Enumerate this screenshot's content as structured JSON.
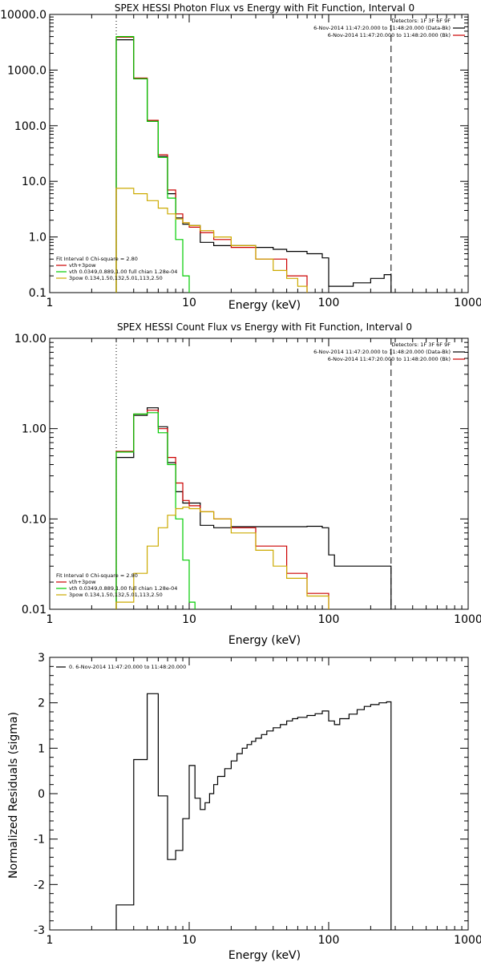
{
  "chart_data": [
    {
      "type": "line",
      "title": "SPEX HESSI Photon Flux vs Energy with Fit Function, Interval 0",
      "xlabel": "Energy (keV)",
      "ylabel": "",
      "xscale": "log",
      "yscale": "log",
      "xlim": [
        1,
        1000
      ],
      "ylim": [
        0.1,
        10000
      ],
      "x_ticks": [
        "1",
        "10",
        "100",
        "1000"
      ],
      "y_ticks": [
        "0.1",
        "1.0",
        "10.0",
        "100.0",
        "1000.0",
        "10000.0"
      ],
      "top_right_legend": [
        {
          "text": "Detectors: 1F 3F 6F 9F",
          "color": ""
        },
        {
          "text": "6-Nov-2014 11:47:20.000 to 11:48:20.000 (Data-Bk)",
          "color": "#000000"
        },
        {
          "text": "6-Nov-2014 11:47:20.000 to 11:48:20.000 (Bk)",
          "color": "#cc0000"
        }
      ],
      "fit_legend": [
        {
          "text": "Fit Interval 0   Chi-square = 2.80",
          "color": ""
        },
        {
          "text": "vth+3pow",
          "color": "#cc0000"
        },
        {
          "text": "vth 0.0349,0.889,1.00  full chian 1.28e-04",
          "color": "#00cc00"
        },
        {
          "text": "3pow 0.134,1.50,132,5.01,113,2.50",
          "color": "#ccaa00"
        }
      ],
      "vlines": [
        {
          "x": 3,
          "style": "dotted"
        },
        {
          "x": 280,
          "style": "dashed"
        }
      ],
      "series": [
        {
          "role": "data",
          "color": "#000000",
          "points": [
            [
              3,
              3500
            ],
            [
              4,
              700
            ],
            [
              5,
              120
            ],
            [
              6,
              28
            ],
            [
              7,
              6
            ],
            [
              8,
              2.2
            ],
            [
              9,
              1.7
            ],
            [
              10,
              1.6
            ],
            [
              12,
              0.8
            ],
            [
              15,
              0.7
            ],
            [
              20,
              0.7
            ],
            [
              30,
              0.65
            ],
            [
              40,
              0.6
            ],
            [
              50,
              0.55
            ],
            [
              70,
              0.5
            ],
            [
              90,
              0.42
            ],
            [
              100,
              0.13
            ],
            [
              120,
              0.13
            ],
            [
              150,
              0.15
            ],
            [
              200,
              0.18
            ],
            [
              250,
              0.21
            ],
            [
              280,
              0.22
            ]
          ]
        },
        {
          "role": "vth+3pow",
          "color": "#cc0000",
          "points": [
            [
              3,
              3900
            ],
            [
              4,
              720
            ],
            [
              5,
              125
            ],
            [
              6,
              30
            ],
            [
              7,
              7
            ],
            [
              8,
              2.6
            ],
            [
              9,
              1.8
            ],
            [
              10,
              1.5
            ],
            [
              12,
              1.2
            ],
            [
              15,
              0.9
            ],
            [
              20,
              0.65
            ],
            [
              30,
              0.4
            ],
            [
              50,
              0.2
            ],
            [
              70,
              0.1
            ]
          ]
        },
        {
          "role": "vth",
          "color": "#00cc00",
          "points": [
            [
              3,
              4000
            ],
            [
              4,
              700
            ],
            [
              5,
              120
            ],
            [
              6,
              27
            ],
            [
              7,
              5
            ],
            [
              8,
              0.9
            ],
            [
              9,
              0.2
            ],
            [
              10,
              0.05
            ]
          ]
        },
        {
          "role": "3pow",
          "color": "#ccaa00",
          "points": [
            [
              3,
              7.5
            ],
            [
              4,
              6
            ],
            [
              5,
              4.5
            ],
            [
              6,
              3.3
            ],
            [
              7,
              2.6
            ],
            [
              8,
              2.1
            ],
            [
              9,
              1.8
            ],
            [
              10,
              1.6
            ],
            [
              12,
              1.3
            ],
            [
              15,
              1
            ],
            [
              20,
              0.7
            ],
            [
              30,
              0.4
            ],
            [
              40,
              0.25
            ],
            [
              50,
              0.18
            ],
            [
              60,
              0.13
            ],
            [
              70,
              0.1
            ]
          ]
        }
      ]
    },
    {
      "type": "line",
      "title": "SPEX HESSI Count Flux vs Energy with Fit Function, Interval 0",
      "xlabel": "Energy (keV)",
      "ylabel": "",
      "xscale": "log",
      "yscale": "log",
      "xlim": [
        1,
        1000
      ],
      "ylim": [
        0.01,
        10
      ],
      "x_ticks": [
        "1",
        "10",
        "100",
        "1000"
      ],
      "y_ticks": [
        "0.01",
        "0.10",
        "1.00",
        "10.00"
      ],
      "top_right_legend": [
        {
          "text": "Detectors: 1F 3F 6F 9F",
          "color": ""
        },
        {
          "text": "6-Nov-2014 11:47:20.000 to 11:48:20.000 (Data-Bk)",
          "color": "#000000"
        },
        {
          "text": "6-Nov-2014 11:47:20.000 to 11:48:20.000 (Bk)",
          "color": "#cc0000"
        }
      ],
      "fit_legend": [
        {
          "text": "Fit Interval 0   Chi-square = 2.80",
          "color": ""
        },
        {
          "text": "vth+3pow",
          "color": "#cc0000"
        },
        {
          "text": "vth 0.0349,0.889,1.00  full chian 1.28e-04",
          "color": "#00cc00"
        },
        {
          "text": "3pow 0.134,1.50,132,5.01,113,2.50",
          "color": "#ccaa00"
        }
      ],
      "vlines": [
        {
          "x": 3,
          "style": "dotted"
        },
        {
          "x": 280,
          "style": "dashed"
        }
      ],
      "series": [
        {
          "role": "data",
          "color": "#000000",
          "points": [
            [
              3,
              0.48
            ],
            [
              4,
              1.4
            ],
            [
              5,
              1.7
            ],
            [
              6,
              1.05
            ],
            [
              7,
              0.42
            ],
            [
              8,
              0.2
            ],
            [
              9,
              0.15
            ],
            [
              10,
              0.15
            ],
            [
              12,
              0.085
            ],
            [
              15,
              0.08
            ],
            [
              20,
              0.082
            ],
            [
              30,
              0.082
            ],
            [
              50,
              0.082
            ],
            [
              70,
              0.083
            ],
            [
              90,
              0.08
            ],
            [
              100,
              0.04
            ],
            [
              110,
              0.03
            ],
            [
              150,
              0.03
            ],
            [
              200,
              0.03
            ],
            [
              280,
              0.03
            ]
          ]
        },
        {
          "role": "vth+3pow",
          "color": "#cc0000",
          "points": [
            [
              3,
              0.56
            ],
            [
              4,
              1.45
            ],
            [
              5,
              1.6
            ],
            [
              6,
              1.0
            ],
            [
              7,
              0.48
            ],
            [
              8,
              0.25
            ],
            [
              9,
              0.16
            ],
            [
              10,
              0.14
            ],
            [
              12,
              0.12
            ],
            [
              15,
              0.1
            ],
            [
              20,
              0.08
            ],
            [
              30,
              0.05
            ],
            [
              50,
              0.025
            ],
            [
              70,
              0.015
            ],
            [
              100,
              0.01
            ]
          ]
        },
        {
          "role": "vth",
          "color": "#00cc00",
          "points": [
            [
              3,
              0.55
            ],
            [
              4,
              1.45
            ],
            [
              5,
              1.5
            ],
            [
              6,
              0.9
            ],
            [
              7,
              0.4
            ],
            [
              8,
              0.1
            ],
            [
              9,
              0.035
            ],
            [
              10,
              0.012
            ],
            [
              11,
              0.01
            ]
          ]
        },
        {
          "role": "3pow",
          "color": "#ccaa00",
          "points": [
            [
              3,
              0.012
            ],
            [
              4,
              0.025
            ],
            [
              5,
              0.05
            ],
            [
              6,
              0.08
            ],
            [
              7,
              0.11
            ],
            [
              8,
              0.13
            ],
            [
              9,
              0.135
            ],
            [
              10,
              0.13
            ],
            [
              12,
              0.12
            ],
            [
              15,
              0.1
            ],
            [
              20,
              0.07
            ],
            [
              30,
              0.045
            ],
            [
              40,
              0.03
            ],
            [
              50,
              0.022
            ],
            [
              70,
              0.014
            ],
            [
              100,
              0.01
            ]
          ]
        }
      ]
    },
    {
      "type": "line",
      "title": "",
      "xlabel": "Energy (keV)",
      "ylabel": "Normalized Residuals (sigma)",
      "xscale": "log",
      "yscale": "linear",
      "xlim": [
        1,
        1000
      ],
      "ylim": [
        -3,
        3
      ],
      "x_ticks": [
        "1",
        "10",
        "100",
        "1000"
      ],
      "y_ticks": [
        "-3",
        "-2",
        "-1",
        "0",
        "1",
        "2",
        "3"
      ],
      "legend": [
        {
          "text": "0. 6-Nov-2014 11:47:20.000 to 11:48:20.000",
          "color": "#000000"
        }
      ],
      "series": [
        {
          "role": "residuals",
          "color": "#000000",
          "points": [
            [
              3,
              -2.45
            ],
            [
              4,
              0.75
            ],
            [
              5,
              2.2
            ],
            [
              6,
              -0.05
            ],
            [
              7,
              -1.45
            ],
            [
              8,
              -1.25
            ],
            [
              9,
              -0.55
            ],
            [
              10,
              0.62
            ],
            [
              11,
              -0.1
            ],
            [
              12,
              -0.35
            ],
            [
              13,
              -0.2
            ],
            [
              14,
              0.0
            ],
            [
              15,
              0.2
            ],
            [
              16,
              0.38
            ],
            [
              18,
              0.55
            ],
            [
              20,
              0.72
            ],
            [
              22,
              0.88
            ],
            [
              24,
              1.0
            ],
            [
              26,
              1.08
            ],
            [
              28,
              1.15
            ],
            [
              30,
              1.22
            ],
            [
              33,
              1.3
            ],
            [
              36,
              1.38
            ],
            [
              40,
              1.45
            ],
            [
              45,
              1.52
            ],
            [
              50,
              1.6
            ],
            [
              55,
              1.65
            ],
            [
              60,
              1.68
            ],
            [
              70,
              1.72
            ],
            [
              80,
              1.76
            ],
            [
              90,
              1.82
            ],
            [
              100,
              1.6
            ],
            [
              110,
              1.52
            ],
            [
              120,
              1.65
            ],
            [
              140,
              1.75
            ],
            [
              160,
              1.85
            ],
            [
              180,
              1.92
            ],
            [
              200,
              1.96
            ],
            [
              230,
              2.0
            ],
            [
              260,
              2.02
            ],
            [
              280,
              2.02
            ]
          ]
        }
      ]
    }
  ]
}
